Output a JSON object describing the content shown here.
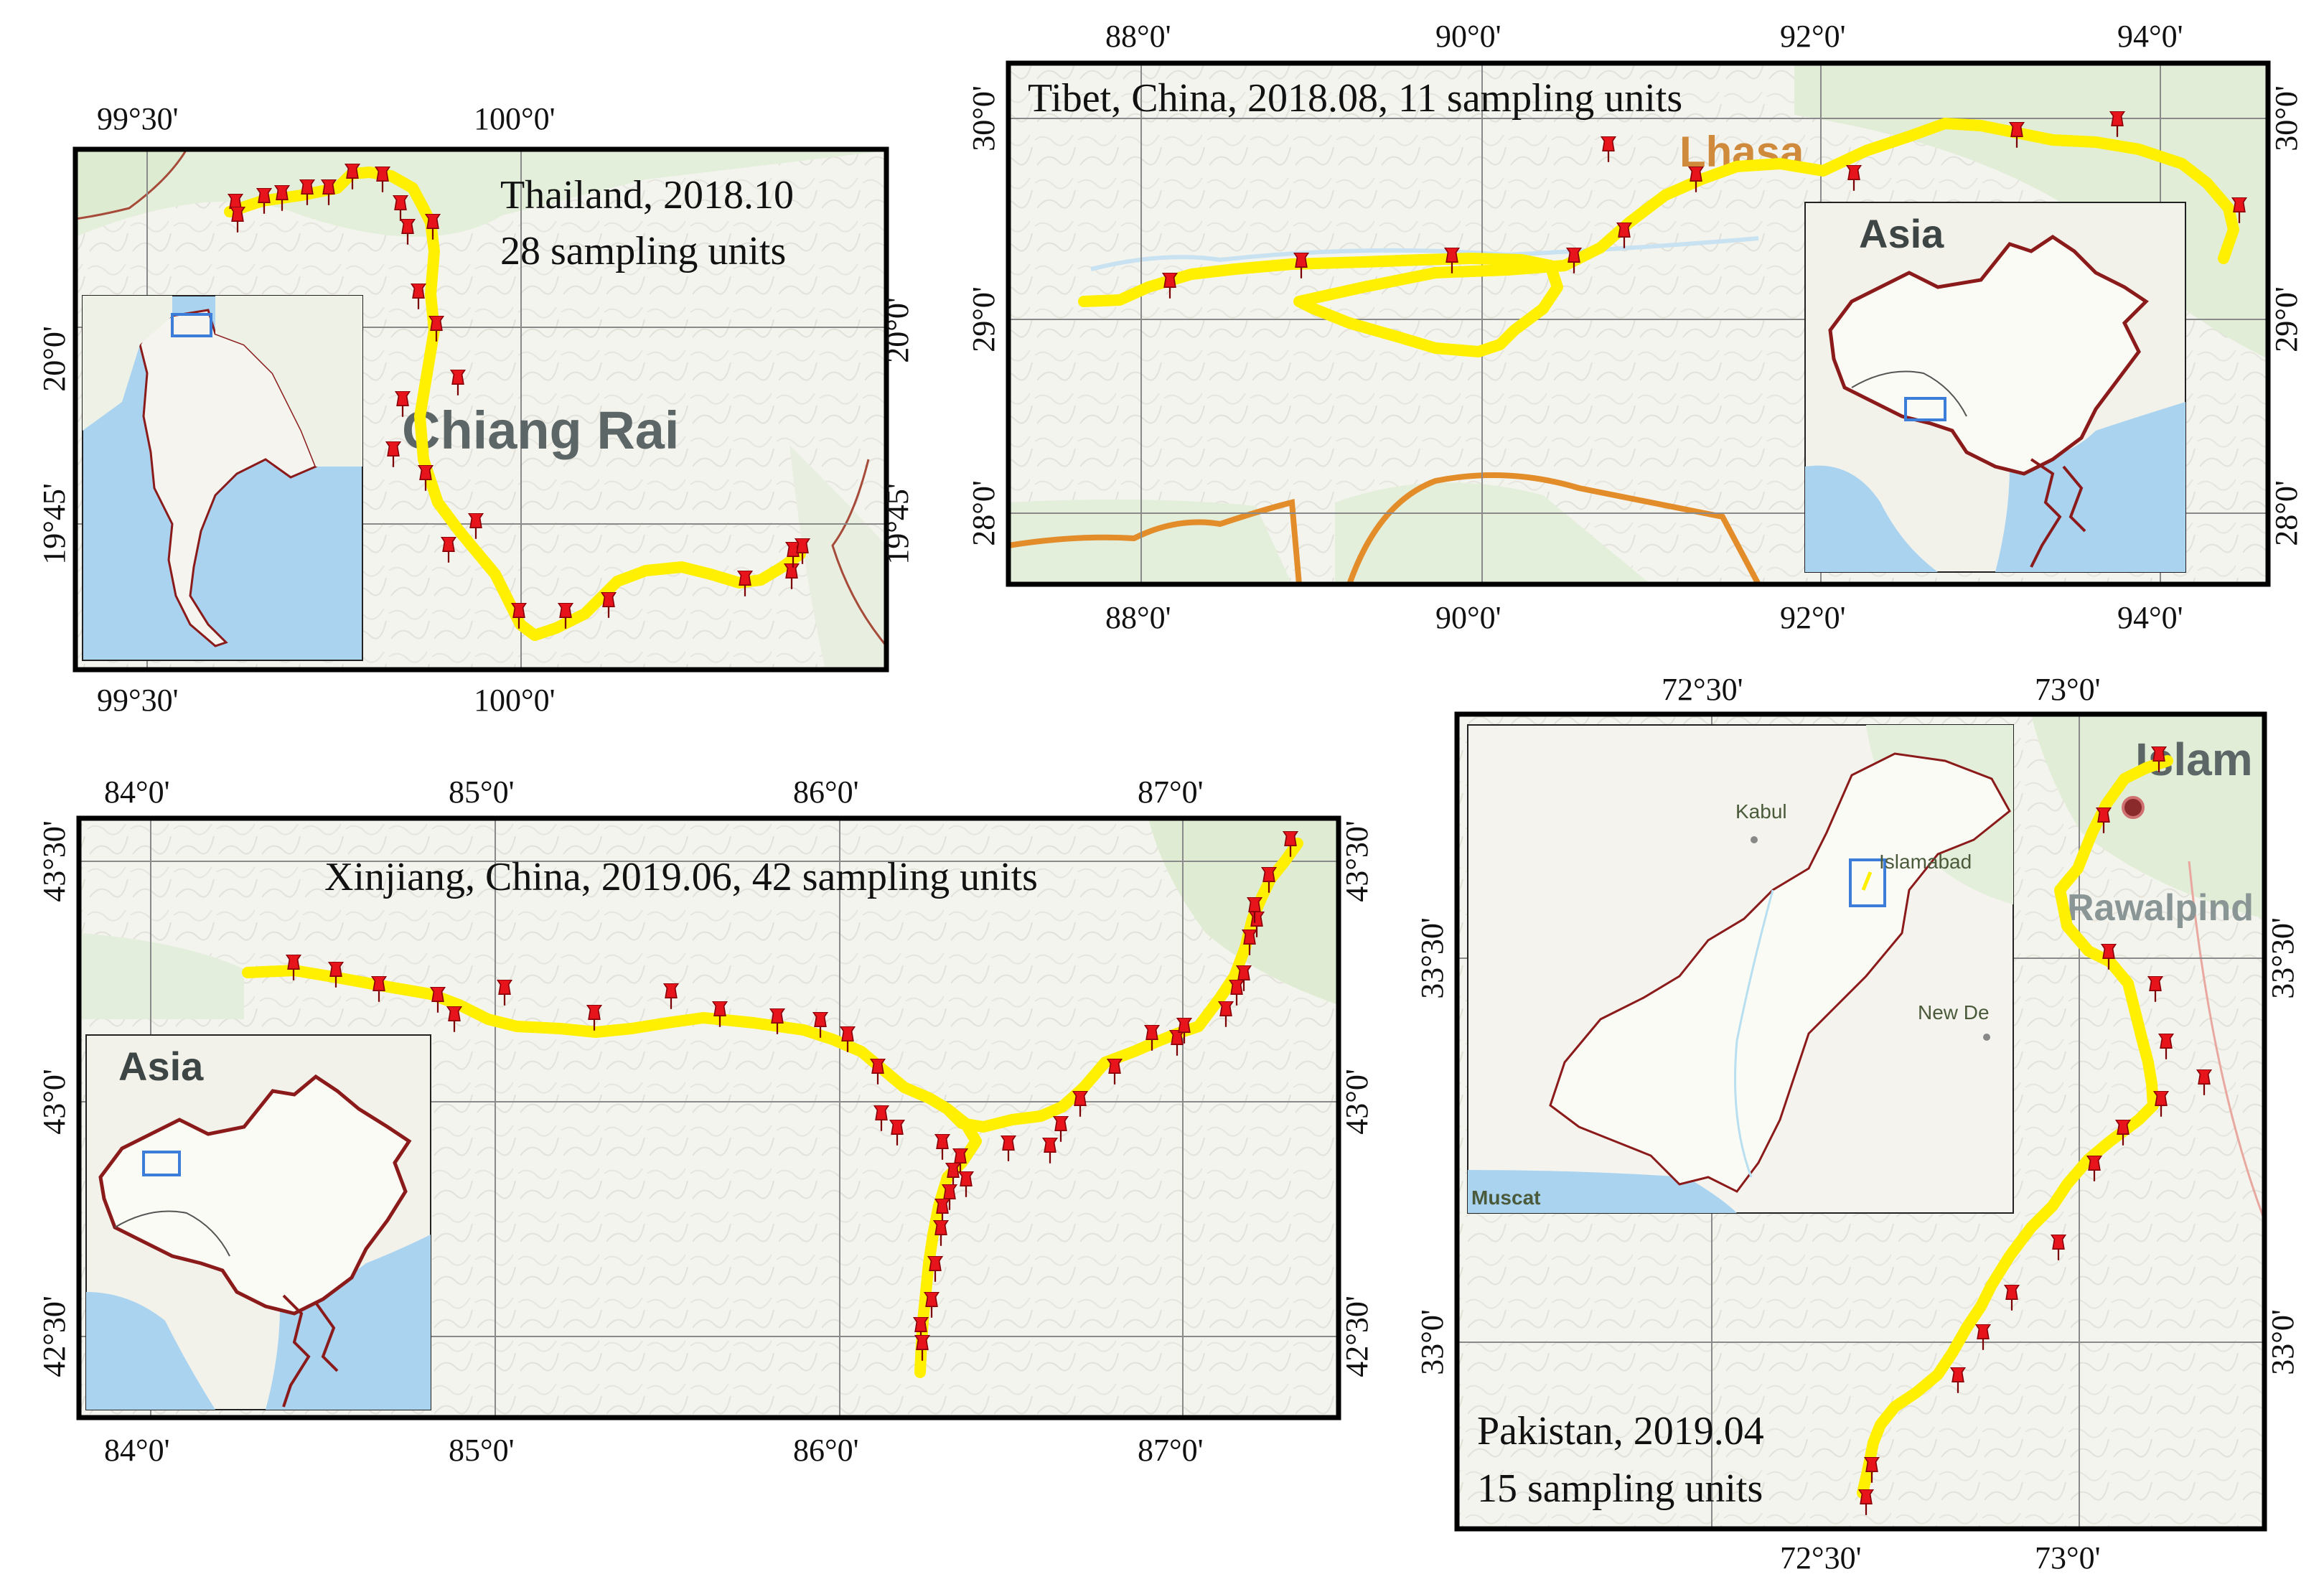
{
  "panels": {
    "thailand": {
      "title_line1": "Thailand, 2018.10",
      "title_line2": "28 sampling units",
      "place_label": "Chiang Rai",
      "x_ticks": [
        "99°30'",
        "100°0'"
      ],
      "y_ticks": [
        "20°0'",
        "19°45'"
      ],
      "sampling_units": 28
    },
    "tibet": {
      "title": "Tibet, China, 2018.08, 11 sampling units",
      "place_label": "Lhasa",
      "inset_label": "Asia",
      "x_ticks": [
        "88°0'",
        "90°0'",
        "92°0'",
        "94°0'"
      ],
      "y_ticks": [
        "30°0'",
        "29°0'",
        "28°0'"
      ],
      "sampling_units": 11
    },
    "xinjiang": {
      "title": "Xinjiang, China, 2019.06, 42 sampling units",
      "inset_label": "Asia",
      "x_ticks": [
        "84°0'",
        "85°0'",
        "86°0'",
        "87°0'"
      ],
      "y_ticks": [
        "43°30'",
        "43°0'",
        "42°30'"
      ],
      "sampling_units": 42
    },
    "pakistan": {
      "title_line1": "Pakistan, 2019.04",
      "title_line2": "15 sampling units",
      "place_islam": "Islam",
      "place_rawalpindi": "Rawalpind",
      "inset_places": [
        "Kabul",
        "Islamabad",
        "New De",
        "Muscat"
      ],
      "x_ticks": [
        "72°30'",
        "73°0'"
      ],
      "y_ticks": [
        "33°30'",
        "33°0'"
      ],
      "sampling_units": 15
    }
  },
  "colors": {
    "route": "#ffef00",
    "marker": "#e8141c",
    "border": "#8b1a1a",
    "water": "#a8d4f2",
    "land": "#f3f2ec"
  }
}
